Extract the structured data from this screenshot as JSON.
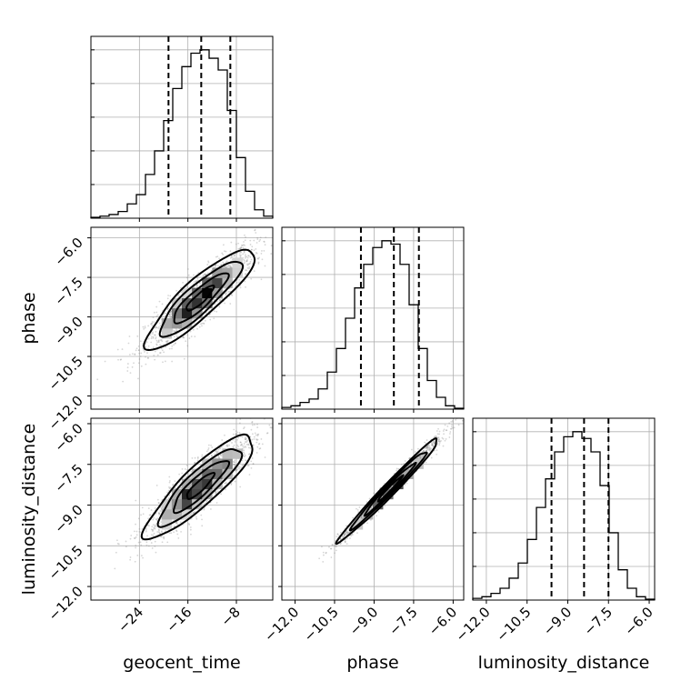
{
  "chart_data": {
    "type": "corner",
    "parameters": [
      {
        "key": "geocent_time",
        "label": "geocent_time",
        "range": [
          -32,
          -2
        ],
        "ticks": [
          -24,
          -16,
          -8
        ],
        "tick_labels": [
          "−24",
          "−16",
          "−8"
        ],
        "hist_y_max": 1.08,
        "hist": [
          0.005,
          0.012,
          0.022,
          0.04,
          0.085,
          0.14,
          0.26,
          0.4,
          0.58,
          0.77,
          0.9,
          0.98,
          1.0,
          0.95,
          0.88,
          0.64,
          0.36,
          0.16,
          0.05,
          0.012
        ],
        "quantiles": [
          -19.2,
          -13.8,
          -9.0
        ]
      },
      {
        "key": "phase",
        "label": "phase",
        "range": [
          -12.5,
          -5.6
        ],
        "ticks": [
          -12.0,
          -10.5,
          -9.0,
          -7.5,
          -6.0
        ],
        "tick_labels": [
          "−12.0",
          "−10.5",
          "−9.0",
          "−7.5",
          "−6.0"
        ],
        "hist_y_max": 1.08,
        "hist": [
          0.01,
          0.02,
          0.04,
          0.06,
          0.12,
          0.22,
          0.36,
          0.54,
          0.72,
          0.86,
          0.96,
          1.0,
          0.98,
          0.86,
          0.62,
          0.36,
          0.17,
          0.07,
          0.02,
          0.005
        ],
        "quantiles": [
          -9.5,
          -8.25,
          -7.3
        ]
      },
      {
        "key": "luminosity_distance",
        "label": "luminosity_distance",
        "range": [
          -12.5,
          -5.8
        ],
        "ticks": [
          -12.0,
          -10.5,
          -9.0,
          -7.5,
          -6.0
        ],
        "tick_labels": [
          "−12.0",
          "−10.5",
          "−9.0",
          "−7.5",
          "−6.0"
        ],
        "hist_y_max": 1.08,
        "hist": [
          0.01,
          0.02,
          0.04,
          0.07,
          0.13,
          0.22,
          0.36,
          0.55,
          0.72,
          0.88,
          0.97,
          1.0,
          0.96,
          0.88,
          0.68,
          0.4,
          0.18,
          0.07,
          0.02,
          0.005
        ],
        "quantiles": [
          -9.6,
          -8.4,
          -7.5
        ]
      }
    ],
    "pairs": [
      {
        "x": "geocent_time",
        "y": "phase",
        "center": [
          -14,
          -8.3
        ],
        "sigma": [
          4.5,
          0.95
        ],
        "rho": 0.88
      },
      {
        "x": "geocent_time",
        "y": "luminosity_distance",
        "center": [
          -14,
          -8.3
        ],
        "sigma": [
          4.5,
          0.95
        ],
        "rho": 0.88
      },
      {
        "x": "phase",
        "y": "luminosity_distance",
        "center": [
          -8.4,
          -8.4
        ],
        "sigma": [
          0.95,
          0.95
        ],
        "rho": 0.985
      }
    ],
    "quantile_levels": [
      0.16,
      0.5,
      0.84
    ],
    "contour_levels": [
      0.5,
      1.0,
      1.5,
      2.0
    ],
    "grid": true
  }
}
